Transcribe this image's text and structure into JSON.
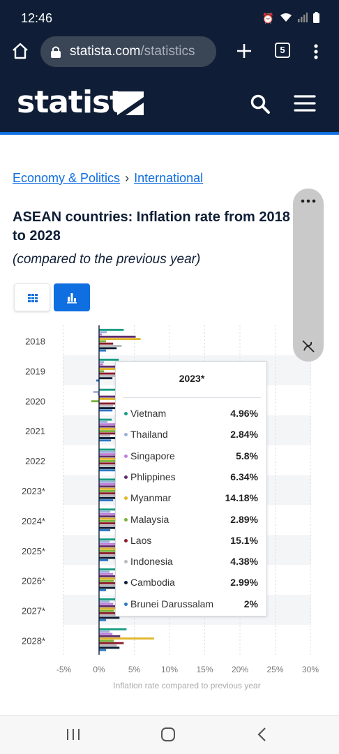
{
  "status_bar": {
    "time": "12:46"
  },
  "browser": {
    "url_host": "statista.com",
    "url_path": "/statistics",
    "tab_count": "5"
  },
  "site": {
    "logo": "statista"
  },
  "breadcrumb": {
    "item1": "Economy & Politics",
    "separator": "›",
    "item2": "International"
  },
  "page": {
    "title": "ASEAN countries: Inflation rate from 2018 to 2028",
    "subtitle": "(compared to the previous year)"
  },
  "colors": {
    "accent": "#0f6ee0",
    "header_bg": "#0f1e36"
  },
  "tooltip": {
    "title": "2023*",
    "rows": [
      {
        "name": "Vietnam",
        "value": "4.96%",
        "color": "#1a9e84"
      },
      {
        "name": "Thailand",
        "value": "2.84%",
        "color": "#9fb0d8"
      },
      {
        "name": "Singapore",
        "value": "5.8%",
        "color": "#c07fd9"
      },
      {
        "name": "Phlippines",
        "value": "6.34%",
        "color": "#5e2e6e"
      },
      {
        "name": "Myanmar",
        "value": "14.18%",
        "color": "#e0b52b"
      },
      {
        "name": "Malaysia",
        "value": "2.89%",
        "color": "#7ab33d"
      },
      {
        "name": "Laos",
        "value": "15.1%",
        "color": "#8b1d2c"
      },
      {
        "name": "Indonesia",
        "value": "4.38%",
        "color": "#b9babd"
      },
      {
        "name": "Cambodia",
        "value": "2.99%",
        "color": "#0f1e36"
      },
      {
        "name": "Brunei Darussalam",
        "value": "2%",
        "color": "#2f78c4"
      }
    ]
  },
  "chart_data": {
    "type": "bar",
    "orientation": "horizontal",
    "categories": [
      "2018",
      "2019",
      "2020",
      "2021",
      "2022",
      "2023*",
      "2024*",
      "2025*",
      "2026*",
      "2027*",
      "2028*"
    ],
    "xlabel": "Inflation rate compared to previous year",
    "x_ticks": [
      "-5%",
      "0%",
      "5%",
      "10%",
      "15%",
      "20%",
      "25%",
      "30%"
    ],
    "xlim": [
      -5,
      30
    ],
    "grid": true,
    "series": [
      {
        "name": "Vietnam",
        "color": "#1a9e84",
        "values": [
          3.5,
          2.8,
          3.2,
          1.8,
          3.2,
          4.96,
          3.9,
          3.6,
          3.5,
          3.5,
          3.9
        ]
      },
      {
        "name": "Thailand",
        "color": "#9fb0d8",
        "values": [
          1.1,
          0.7,
          -0.8,
          1.2,
          6.1,
          2.84,
          1.6,
          1.5,
          1.5,
          1.5,
          1.5
        ]
      },
      {
        "name": "Singapore",
        "color": "#c07fd9",
        "values": [
          0.4,
          0.6,
          -0.2,
          2.3,
          6.1,
          5.8,
          3.5,
          2.5,
          2.0,
          2.0,
          1.9
        ]
      },
      {
        "name": "Phlippines",
        "color": "#5e2e6e",
        "values": [
          5.2,
          2.4,
          2.4,
          3.9,
          5.8,
          6.34,
          3.6,
          3.2,
          3.0,
          3.0,
          3.0
        ]
      },
      {
        "name": "Myanmar",
        "color": "#e0b52b",
        "values": [
          5.9,
          8.6,
          5.7,
          3.6,
          18.4,
          14.18,
          12.9,
          10.5,
          9.0,
          8.2,
          7.8
        ]
      },
      {
        "name": "Malaysia",
        "color": "#7ab33d",
        "values": [
          1.0,
          0.7,
          -1.1,
          2.5,
          3.4,
          2.89,
          2.7,
          2.3,
          2.1,
          2.1,
          2.1
        ]
      },
      {
        "name": "Laos",
        "color": "#8b1d2c",
        "values": [
          2.0,
          3.3,
          5.1,
          3.8,
          23.0,
          15.1,
          11.6,
          6.9,
          4.5,
          4.0,
          3.5
        ]
      },
      {
        "name": "Indonesia",
        "color": "#b9babd",
        "values": [
          3.2,
          2.8,
          2.0,
          1.6,
          4.2,
          4.38,
          2.8,
          2.7,
          2.6,
          2.5,
          2.5
        ]
      },
      {
        "name": "Cambodia",
        "color": "#0f1e36",
        "values": [
          2.5,
          1.9,
          2.9,
          2.9,
          5.3,
          2.99,
          2.7,
          2.7,
          2.8,
          2.9,
          2.9
        ]
      },
      {
        "name": "Brunei Darussalam",
        "color": "#2f78c4",
        "values": [
          1.0,
          -0.4,
          1.9,
          1.7,
          3.7,
          2.0,
          1.6,
          1.3,
          1.0,
          1.0,
          1.0
        ]
      }
    ]
  }
}
